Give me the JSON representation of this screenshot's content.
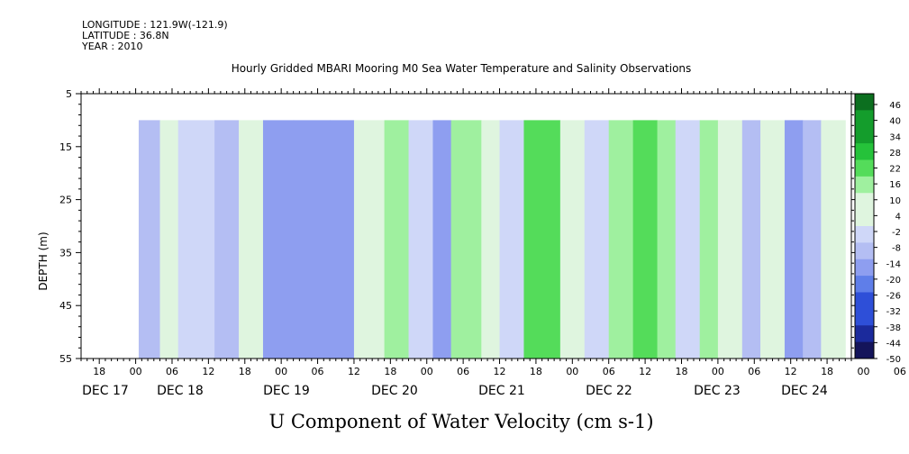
{
  "header": {
    "longitude": "LONGITUDE : 121.9W(-121.9)",
    "latitude": "LATITUDE : 36.8N",
    "year": "YEAR : 2010"
  },
  "chart_data": {
    "type": "heatmap",
    "title": "Hourly Gridded MBARI Mooring M0 Sea Water Temperature and Salinity Observations",
    "xlabel": "U Component of Water Velocity (cm s-1)",
    "ylabel": "DEPTH (m)",
    "ylim": [
      55,
      5
    ],
    "yticks": [
      "5",
      "15",
      "25",
      "35",
      "45",
      "55"
    ],
    "x_range_hours": [
      -9,
      118
    ],
    "data_start_hour": 0.5,
    "data_top_depth": 10,
    "hour_ticks": [
      "18",
      "00",
      "06",
      "12",
      "18",
      "00",
      "06",
      "12",
      "18",
      "00",
      "06",
      "12",
      "18",
      "00",
      "06",
      "12",
      "18",
      "00",
      "06",
      "12",
      "18",
      "00",
      "06",
      "12",
      "18",
      "00",
      "06",
      "12",
      "18",
      "00",
      "06",
      "12"
    ],
    "day_labels": [
      "DEC 17",
      "DEC 18",
      "DEC 19",
      "DEC 20",
      "DEC 21",
      "DEC 22",
      "DEC 23",
      "DEC 24"
    ],
    "colorbar_levels": [
      "46",
      "40",
      "34",
      "28",
      "22",
      "16",
      "10",
      "4",
      "-2",
      "-8",
      "-14",
      "-20",
      "-26",
      "-32",
      "-38",
      "-44",
      "-50"
    ],
    "colorbar_range": [
      -50,
      52
    ],
    "bands": [
      {
        "x": [
          0.5,
          4
        ],
        "value": -10
      },
      {
        "x": [
          4,
          7
        ],
        "value": 2
      },
      {
        "x": [
          7,
          13
        ],
        "value": -6
      },
      {
        "x": [
          13,
          17
        ],
        "value": -12
      },
      {
        "x": [
          17,
          21
        ],
        "value": 4
      },
      {
        "x": [
          21,
          26
        ],
        "value": -16
      },
      {
        "x": [
          26,
          32
        ],
        "value": -20
      },
      {
        "x": [
          32,
          36
        ],
        "value": -14
      },
      {
        "x": [
          36,
          41
        ],
        "value": 6
      },
      {
        "x": [
          41,
          45
        ],
        "value": 10
      },
      {
        "x": [
          45,
          49
        ],
        "value": -6
      },
      {
        "x": [
          49,
          52
        ],
        "value": -14
      },
      {
        "x": [
          52,
          57
        ],
        "value": 10
      },
      {
        "x": [
          57,
          60
        ],
        "value": 4
      },
      {
        "x": [
          60,
          64
        ],
        "value": -6
      },
      {
        "x": [
          64,
          70
        ],
        "value": 20
      },
      {
        "x": [
          70,
          74
        ],
        "value": 8
      },
      {
        "x": [
          74,
          78
        ],
        "value": -4
      },
      {
        "x": [
          78,
          82
        ],
        "value": 12
      },
      {
        "x": [
          82,
          86
        ],
        "value": 22
      },
      {
        "x": [
          86,
          89
        ],
        "value": 10
      },
      {
        "x": [
          89,
          93
        ],
        "value": -4
      },
      {
        "x": [
          93,
          96
        ],
        "value": 12
      },
      {
        "x": [
          96,
          100
        ],
        "value": 6
      },
      {
        "x": [
          100,
          103
        ],
        "value": -10
      },
      {
        "x": [
          103,
          107
        ],
        "value": 4
      },
      {
        "x": [
          107,
          110
        ],
        "value": -14
      },
      {
        "x": [
          110,
          113
        ],
        "value": -8
      },
      {
        "x": [
          113,
          117
        ],
        "value": 6
      }
    ],
    "colors": {
      "scale": [
        "#14145a",
        "#1b2a9c",
        "#2e4fd8",
        "#5f7ee9",
        "#8e9ef0",
        "#b4bef3",
        "#cfd7f8",
        "#dff5df",
        "#9ff09f",
        "#54dc5a",
        "#25c23a",
        "#149d2c",
        "#0c6f1f",
        "#0a4512"
      ],
      "axis": "#000000",
      "background": "#ffffff"
    }
  }
}
